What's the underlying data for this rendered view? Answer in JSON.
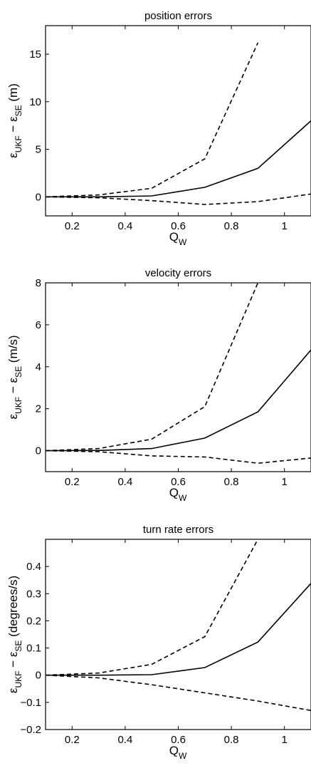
{
  "chart_data": [
    {
      "type": "line",
      "title": "position errors",
      "xlabel": {
        "main": "Q",
        "sub": "W"
      },
      "ylabel": {
        "eps": "ε",
        "sub1": "UKF",
        "minus": " − ",
        "sub2": "SE",
        "unit": " (m)"
      },
      "xlim": [
        0.1,
        1.1
      ],
      "ylim": [
        -2,
        18
      ],
      "xticks": [
        0.2,
        0.4,
        0.6,
        0.8,
        1
      ],
      "xticklabels": [
        "0.2",
        "0.4",
        "0.6",
        "0.8",
        "1"
      ],
      "yticks": [
        0,
        5,
        10,
        15
      ],
      "yticklabels": [
        "0",
        "5",
        "10",
        "15"
      ],
      "grid": false,
      "series": [
        {
          "style": "solid",
          "x": [
            0.1,
            0.3,
            0.5,
            0.7,
            0.9,
            1.1
          ],
          "y": [
            0,
            0,
            0.1,
            1.0,
            3.0,
            8.0
          ]
        },
        {
          "style": "dashed",
          "x": [
            0.1,
            0.3,
            0.5,
            0.7,
            0.9
          ],
          "y": [
            0,
            0.2,
            0.9,
            4.0,
            16.2
          ]
        },
        {
          "style": "dashed",
          "x": [
            0.1,
            0.3,
            0.5,
            0.7,
            0.9,
            1.1
          ],
          "y": [
            0,
            -0.1,
            -0.4,
            -0.8,
            -0.5,
            0.3
          ]
        }
      ]
    },
    {
      "type": "line",
      "title": "velocity errors",
      "xlabel": {
        "main": "Q",
        "sub": "W"
      },
      "ylabel": {
        "eps": "ε",
        "sub1": "UKF",
        "minus": " − ",
        "sub2": "SE",
        "unit": " (m/s)"
      },
      "xlim": [
        0.1,
        1.1
      ],
      "ylim": [
        -1,
        8
      ],
      "xticks": [
        0.2,
        0.4,
        0.6,
        0.8,
        1
      ],
      "xticklabels": [
        "0.2",
        "0.4",
        "0.6",
        "0.8",
        "1"
      ],
      "yticks": [
        0,
        2,
        4,
        6,
        8
      ],
      "yticklabels": [
        "0",
        "2",
        "4",
        "6",
        "8"
      ],
      "grid": false,
      "series": [
        {
          "style": "solid",
          "x": [
            0.1,
            0.3,
            0.5,
            0.7,
            0.9,
            1.1
          ],
          "y": [
            0,
            0.01,
            0.1,
            0.6,
            1.85,
            4.8
          ]
        },
        {
          "style": "dashed",
          "x": [
            0.1,
            0.3,
            0.5,
            0.7,
            0.9
          ],
          "y": [
            0,
            0.1,
            0.55,
            2.1,
            8.0
          ]
        },
        {
          "style": "dashed",
          "x": [
            0.1,
            0.3,
            0.5,
            0.7,
            0.9,
            1.1
          ],
          "y": [
            0,
            -0.05,
            -0.25,
            -0.3,
            -0.6,
            -0.35
          ]
        }
      ]
    },
    {
      "type": "line",
      "title": "turn rate errors",
      "xlabel": {
        "main": "Q",
        "sub": "W"
      },
      "ylabel": {
        "eps": "ε",
        "sub1": "UKF",
        "minus": " − ",
        "sub2": "SE",
        "unit": " (degrees/s)"
      },
      "xlim": [
        0.1,
        1.1
      ],
      "ylim": [
        -0.2,
        0.5
      ],
      "xticks": [
        0.2,
        0.4,
        0.6,
        0.8,
        1
      ],
      "xticklabels": [
        "0.2",
        "0.4",
        "0.6",
        "0.8",
        "1"
      ],
      "yticks": [
        -0.2,
        -0.1,
        0,
        0.1,
        0.2,
        0.3,
        0.4
      ],
      "yticklabels": [
        "−0.2",
        "−0.1",
        "0",
        "0.1",
        "0.2",
        "0.3",
        "0.4"
      ],
      "grid": false,
      "series": [
        {
          "style": "solid",
          "x": [
            0.1,
            0.3,
            0.5,
            0.7,
            0.9,
            1.1
          ],
          "y": [
            0,
            0,
            0.002,
            0.028,
            0.122,
            0.338
          ]
        },
        {
          "style": "dashed",
          "x": [
            0.1,
            0.3,
            0.5,
            0.7,
            0.9
          ],
          "y": [
            0,
            0.008,
            0.04,
            0.142,
            0.5
          ]
        },
        {
          "style": "dashed",
          "x": [
            0.1,
            0.3,
            0.5,
            0.7,
            0.9,
            1.1
          ],
          "y": [
            0,
            -0.01,
            -0.035,
            -0.065,
            -0.095,
            -0.13
          ]
        }
      ]
    }
  ]
}
